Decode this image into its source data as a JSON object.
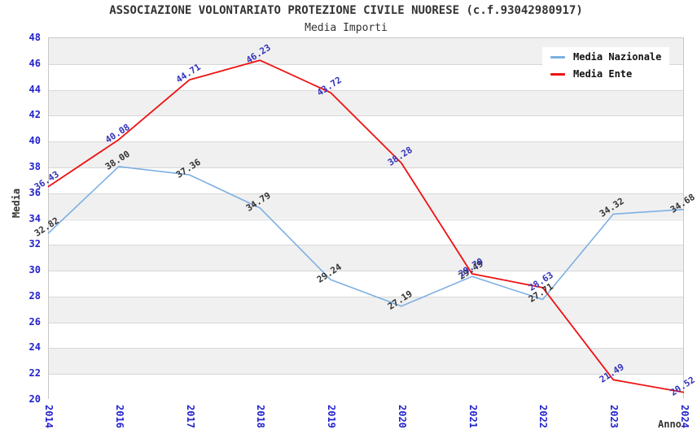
{
  "header": {
    "title": "ASSOCIAZIONE VOLONTARIATO PROTEZIONE CIVILE NUORESE (c.f.93042980917)",
    "subtitle": "Media Importi"
  },
  "colors": {
    "tick_label": "#2222cc",
    "grid_line": "#d8d8d8",
    "band_gray": "#f0f0f0",
    "band_white": "#ffffff",
    "plot_border": "#c8c8c8",
    "title_text": "#333333",
    "media_nazionale_line": "#7cb0e2",
    "media_ente_line": "#ee1111"
  },
  "chart_data": {
    "type": "line",
    "title": "ASSOCIAZIONE VOLONTARIATO PROTEZIONE CIVILE NUORESE (c.f.93042980917)",
    "subtitle": "Media Importi",
    "xlabel": "Anno",
    "ylabel": "Media",
    "categories": [
      "2014",
      "2016",
      "2017",
      "2018",
      "2019",
      "2020",
      "2021",
      "2022",
      "2023",
      "2024"
    ],
    "series": [
      {
        "name": "Media Nazionale",
        "color": "#7cb0e2",
        "label_color": "#333333",
        "line_width": 1.6,
        "values": [
          32.82,
          38.0,
          37.36,
          34.79,
          29.24,
          27.19,
          29.49,
          27.71,
          34.32,
          34.68
        ]
      },
      {
        "name": "Media Ente",
        "color": "#ee1111",
        "label_color": "#3333bb",
        "line_width": 1.8,
        "values": [
          36.43,
          40.08,
          44.71,
          46.23,
          43.72,
          38.28,
          29.7,
          28.63,
          21.49,
          20.52
        ]
      }
    ],
    "ylim": [
      20,
      48
    ],
    "ytick_step": 2,
    "grid": true,
    "background_bands": [
      "#f0f0f0",
      "#ffffff"
    ],
    "legend_position": "top-right",
    "x_tick_rotation": 90,
    "point_label_rotation": -33,
    "point_labels_visible": true
  }
}
